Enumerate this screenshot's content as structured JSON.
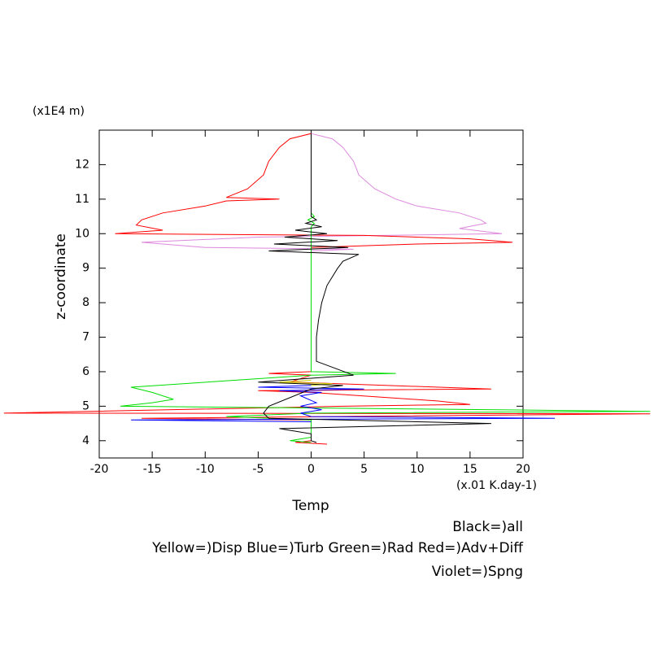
{
  "chart_data": {
    "type": "line",
    "y_unit": "(x1E4 m)",
    "y_label": "z-coordinate",
    "x_unit": "(x.01 K.day-1)",
    "x_label": "Temp",
    "legend_lines": [
      "Black=)all",
      "Yellow=)Disp Blue=)Turb Green=)Rad Red=)Adv+Diff",
      "Violet=)Spng"
    ],
    "xlim": [
      -20,
      20
    ],
    "ylim": [
      3.5,
      13
    ],
    "xticks": [
      -20,
      -15,
      -10,
      -5,
      0,
      5,
      10,
      15,
      20
    ],
    "yticks": [
      4,
      5,
      6,
      7,
      8,
      9,
      10,
      11,
      12
    ],
    "series": [
      {
        "color": "#dd88dd",
        "x": [
          0,
          2,
          3,
          4,
          4.5,
          6,
          8,
          10,
          14,
          16,
          16.5,
          14,
          18,
          -5,
          -16,
          -10,
          4,
          0,
          0
        ],
        "y": [
          12.9,
          12.75,
          12.5,
          12.1,
          11.7,
          11.3,
          11.0,
          10.8,
          10.6,
          10.4,
          10.3,
          10.15,
          10.0,
          9.9,
          9.75,
          9.6,
          9.55,
          9.5,
          9.4
        ]
      },
      {
        "color": "#ff0000",
        "x": [
          0,
          -2,
          -3,
          -4,
          -4.5,
          -6,
          -8,
          -5,
          -3,
          -8,
          -10,
          -14,
          -16,
          -16.5,
          -14,
          -18.5,
          5,
          15,
          19,
          10,
          0,
          0,
          -4,
          0,
          -2,
          17,
          -5,
          0,
          12,
          15,
          3,
          -29,
          32,
          -16,
          0,
          0,
          -1.5,
          1.5
        ],
        "y": [
          12.9,
          12.75,
          12.5,
          12.1,
          11.7,
          11.3,
          11.05,
          11.02,
          11.0,
          10.95,
          10.8,
          10.6,
          10.4,
          10.25,
          10.1,
          10.0,
          9.95,
          9.85,
          9.75,
          9.7,
          9.6,
          6.0,
          5.95,
          5.9,
          5.7,
          5.5,
          5.45,
          5.4,
          5.15,
          5.05,
          5.0,
          4.8,
          4.78,
          4.65,
          4.6,
          4.0,
          3.95,
          3.9
        ]
      },
      {
        "color": "#00dd00",
        "x": [
          0,
          0.3,
          -0.3,
          0.3,
          0,
          0,
          8,
          0,
          -17,
          -15,
          -13,
          -15,
          -18,
          0,
          32,
          0,
          -8,
          0,
          0,
          -2,
          0
        ],
        "y": [
          10.6,
          10.5,
          10.4,
          10.3,
          10.2,
          6.0,
          5.95,
          5.9,
          5.55,
          5.4,
          5.2,
          5.1,
          5.0,
          4.95,
          4.85,
          4.8,
          4.7,
          4.6,
          4.1,
          4.0,
          3.95
        ]
      },
      {
        "color": "#0000ff",
        "x": [
          0,
          -5,
          5,
          -3,
          1,
          -1,
          0.5,
          -1,
          1,
          -1,
          0,
          23,
          -17,
          0
        ],
        "y": [
          5.6,
          5.55,
          5.5,
          5.45,
          5.4,
          5.3,
          5.1,
          5.0,
          4.9,
          4.8,
          4.7,
          4.65,
          4.6,
          4.55
        ]
      },
      {
        "color": "#cccc00",
        "x": [
          0,
          -3,
          2,
          0
        ],
        "y": [
          5.75,
          5.7,
          5.65,
          5.6
        ]
      },
      {
        "color": "#000000",
        "x": [
          0,
          0,
          0.5,
          -0.5,
          1,
          -1.5,
          1.5,
          -2.5,
          2.5,
          -3.5,
          3.5,
          -4,
          4.5,
          3,
          2.5,
          1.5,
          1,
          0.7,
          0.5,
          0.5,
          4,
          -5,
          3,
          0,
          -4,
          -4.5,
          -4,
          17,
          -3,
          0,
          0,
          0.5
        ],
        "y": [
          12.9,
          10.5,
          10.4,
          10.3,
          10.2,
          10.1,
          10.0,
          9.9,
          9.8,
          9.7,
          9.6,
          9.5,
          9.4,
          9.2,
          9.0,
          8.5,
          8.0,
          7.5,
          7.0,
          6.3,
          5.9,
          5.7,
          5.6,
          5.5,
          5.0,
          4.8,
          4.65,
          4.5,
          4.35,
          4.2,
          4.0,
          3.95
        ]
      }
    ]
  }
}
